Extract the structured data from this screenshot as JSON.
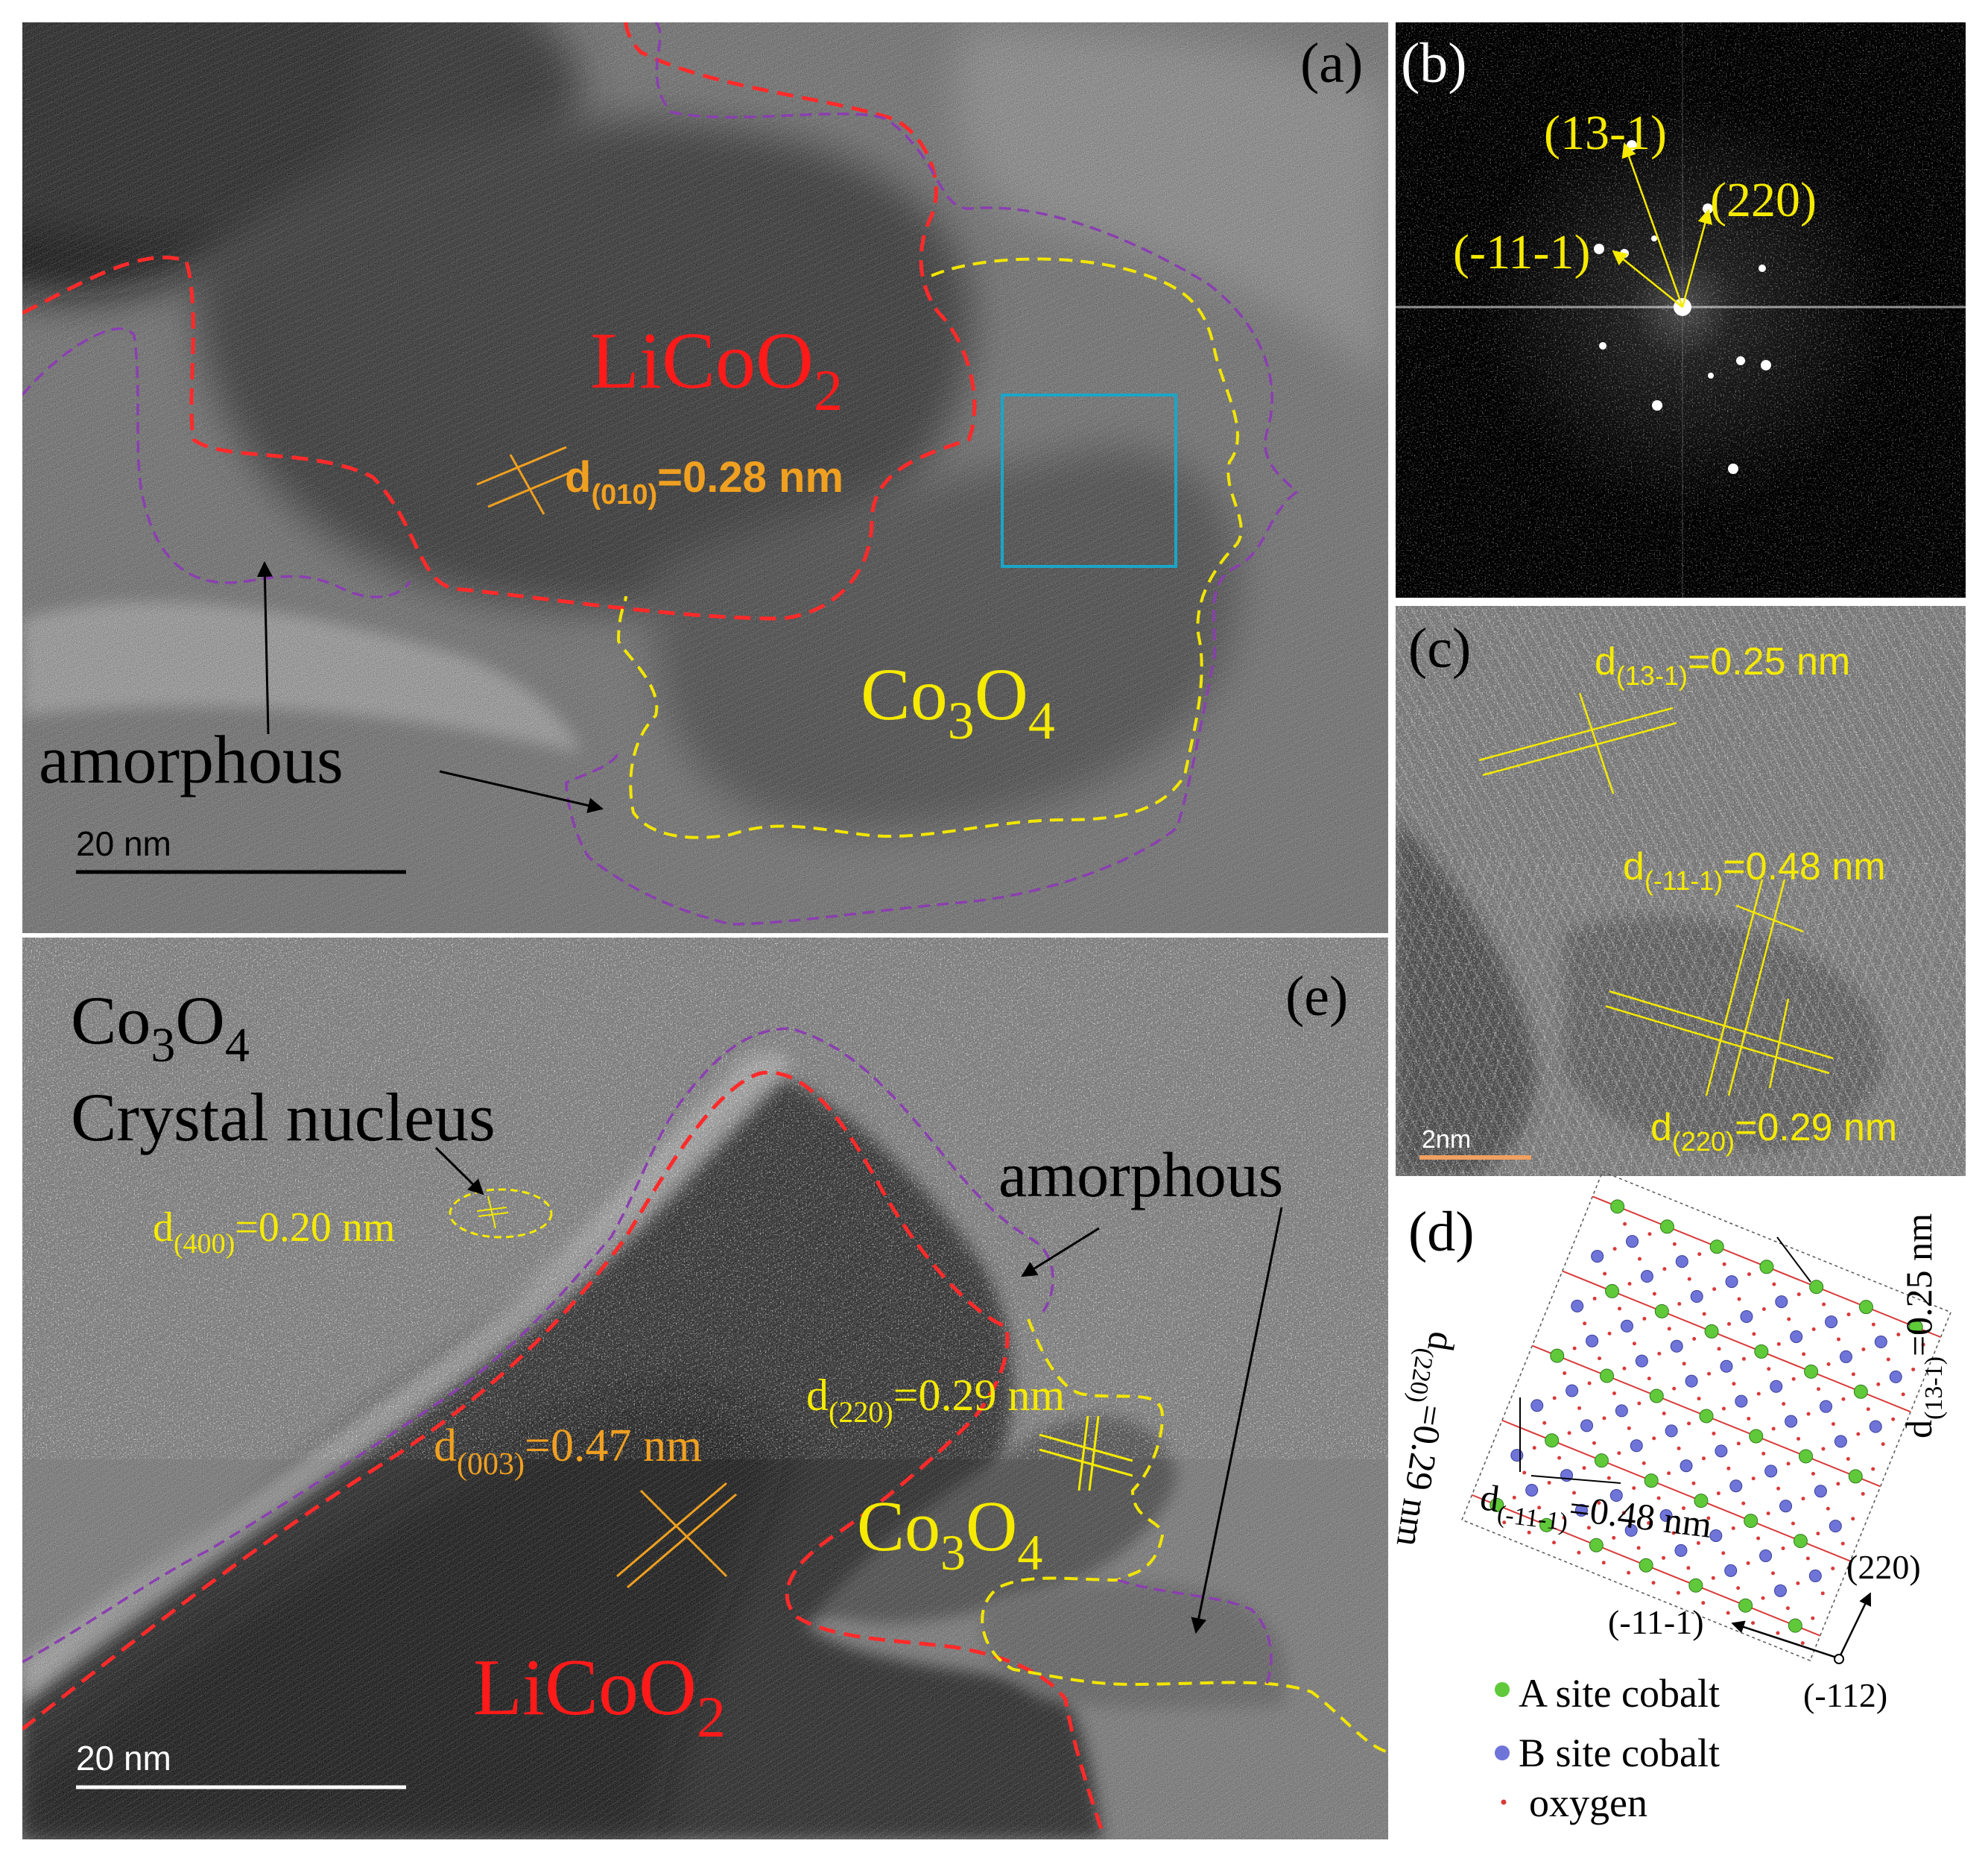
{
  "panels": {
    "a": {
      "label": "(a)",
      "phase_licoo2": "LiCoO",
      "phase_licoo2_sub": "2",
      "phase_co3o4": "Co",
      "phase_co3o4_sub1": "3",
      "phase_co3o4_mid": "O",
      "phase_co3o4_sub2": "4",
      "lattice_d": "d",
      "lattice_hkl": "(010)",
      "lattice_value": "=0.28 nm",
      "amorphous_label": "amorphous",
      "scale_bar": "20 nm"
    },
    "b": {
      "label": "(b)",
      "spot_13": "(13-1)",
      "spot_220": "(220)",
      "spot_m11": "(-11-1)"
    },
    "c": {
      "label": "(c)",
      "d1_d": "d",
      "d1_hkl": "(13-1)",
      "d1_value": "=0.25 nm",
      "d2_d": "d",
      "d2_hkl": "(-11-1)",
      "d2_value": "=0.48 nm",
      "d3_d": "d",
      "d3_hkl": "(220)",
      "d3_value": "=0.29 nm",
      "scale_bar": "2nm"
    },
    "d": {
      "label": "(d)",
      "d220_d": "d",
      "d220_hkl": "(220)",
      "d220_value": "=0.29 nm",
      "d131_d": "d",
      "d131_hkl": "(13-1)",
      "d131_value": "=0.25 nm",
      "dm11_d": "d",
      "dm11_hkl": "(-11-1)",
      "dm11_value": "=0.48 nm",
      "axis_220": "(220)",
      "axis_m11": "(-11-1)",
      "axis_m112": "(-112)",
      "legend": [
        {
          "label": "A site cobalt",
          "color": "#5fc93a"
        },
        {
          "label": "B site cobalt",
          "color": "#6f74d8"
        },
        {
          "label": "oxygen",
          "color": "#d83a3a"
        }
      ]
    },
    "e": {
      "label": "(e)",
      "nucleus_co": "Co",
      "nucleus_sub1": "3",
      "nucleus_o": "O",
      "nucleus_sub2": "4",
      "nucleus_label": "Crystal nucleus",
      "d400_d": "d",
      "d400_hkl": "(400)",
      "d400_value": "=0.20 nm",
      "d220_d": "d",
      "d220_hkl": "(220)",
      "d220_value": "=0.29 nm",
      "d003_d": "d",
      "d003_hkl": "(003)",
      "d003_value": "=0.47 nm",
      "phase_co3o4": "Co",
      "phase_co3o4_sub1": "3",
      "phase_co3o4_mid": "O",
      "phase_co3o4_sub2": "4",
      "phase_licoo2": "LiCoO",
      "phase_licoo2_sub": "2",
      "amorphous_label": "amorphous",
      "scale_bar": "20 nm"
    }
  },
  "colors": {
    "licoo2_boundary": "#ff2a2a",
    "co3o4_boundary": "#f2e600",
    "amorphous_boundary": "#8a3fb0",
    "lattice_orange": "#f0a020",
    "label_yellow": "#f5ea00",
    "roi_box": "#1aa6c8"
  }
}
